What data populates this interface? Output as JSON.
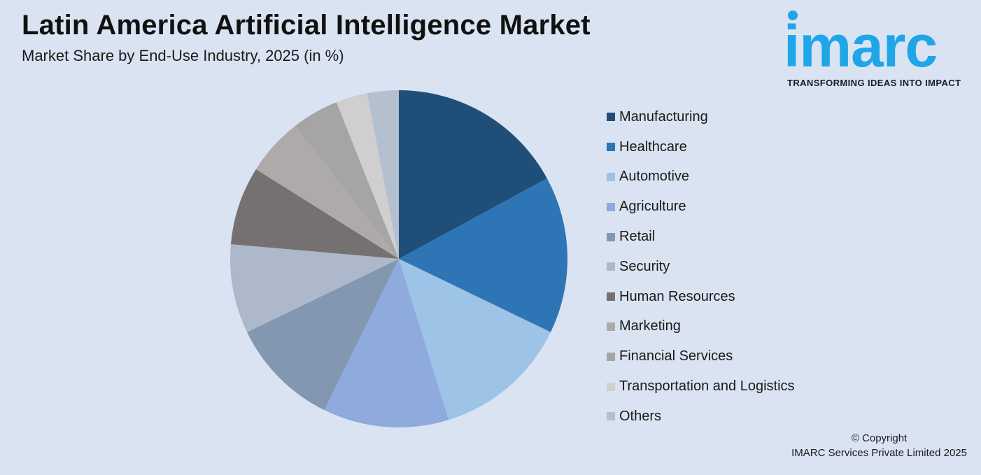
{
  "header": {
    "title": "Latin America Artificial Intelligence Market",
    "subtitle": "Market Share by End-Use Industry, 2025 (in %)"
  },
  "logo": {
    "wordmark": "imarc",
    "tagline": "TRANSFORMING IDEAS INTO IMPACT",
    "color": "#1ea6e8"
  },
  "chart_data": {
    "type": "pie",
    "title": "Latin America Artificial Intelligence Market",
    "subtitle": "Market Share by End-Use Industry, 2025 (in %)",
    "legend_position": "right",
    "slices": [
      {
        "label": "Manufacturing",
        "value": 17.0,
        "color": "#1f4e79"
      },
      {
        "label": "Healthcare",
        "value": 15.0,
        "color": "#2e75b6"
      },
      {
        "label": "Automotive",
        "value": 13.0,
        "color": "#9dc3e6"
      },
      {
        "label": "Agriculture",
        "value": 12.0,
        "color": "#8faadc"
      },
      {
        "label": "Retail",
        "value": 10.5,
        "color": "#8497b0"
      },
      {
        "label": "Security",
        "value": 8.5,
        "color": "#adb9ca"
      },
      {
        "label": "Human Resources",
        "value": 7.5,
        "color": "#767171"
      },
      {
        "label": "Marketing",
        "value": 5.5,
        "color": "#aeaaaa"
      },
      {
        "label": "Financial Services",
        "value": 4.5,
        "color": "#a5a5a5"
      },
      {
        "label": "Transportation and Logistics",
        "value": 3.0,
        "color": "#d0cece"
      },
      {
        "label": "Others",
        "value": 3.0,
        "color": "#b4c0d0"
      }
    ]
  },
  "footer": {
    "copyright_line1": "© Copyright",
    "copyright_line2": "IMARC Services Private Limited 2025"
  }
}
